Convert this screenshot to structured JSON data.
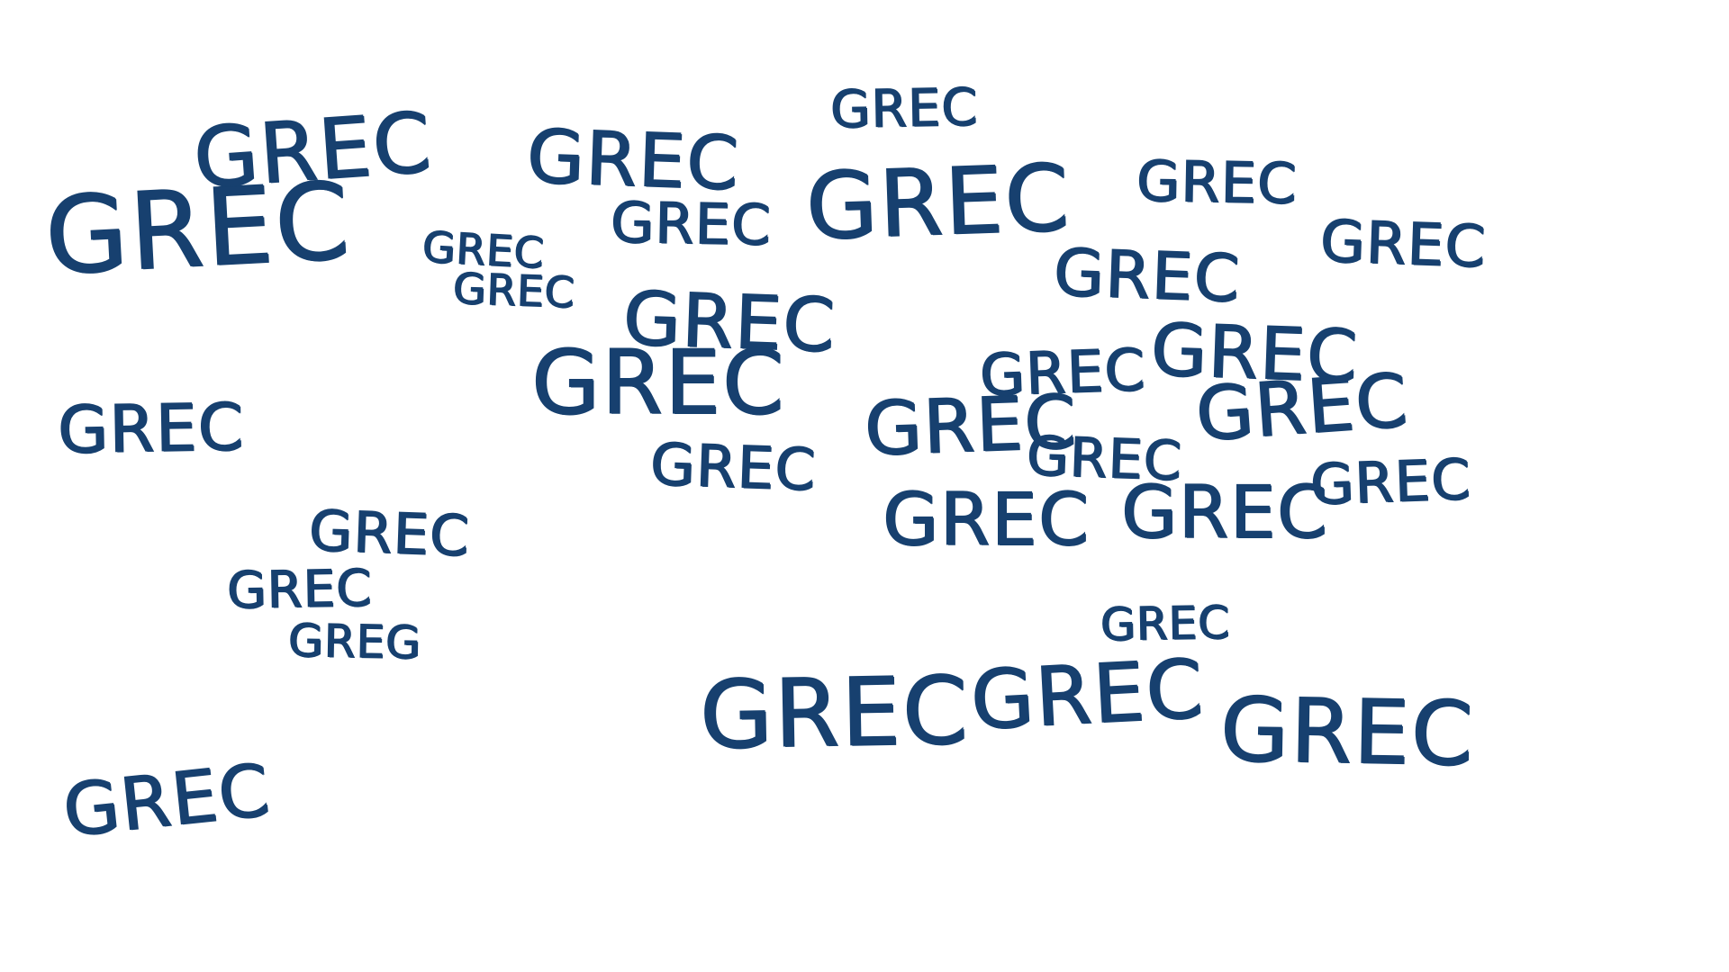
{
  "ink_color": "#17406f",
  "background_color": "#ffffff",
  "words": [
    "GREC",
    "GREC",
    "GREC",
    "GREC",
    "GREC",
    "GREC",
    "GREC",
    "GREC",
    "GREC",
    "GREC",
    "GREC",
    "GREC",
    "GREC",
    "GREC",
    "GREC",
    "GREC",
    "GREC",
    "GREC",
    "GREC",
    "GREC",
    "GREC",
    "GREC",
    "GREC",
    "GREC",
    "GREC",
    "GREG",
    "GREC",
    "GREC",
    "GREC",
    "GREC",
    "GREC"
  ]
}
